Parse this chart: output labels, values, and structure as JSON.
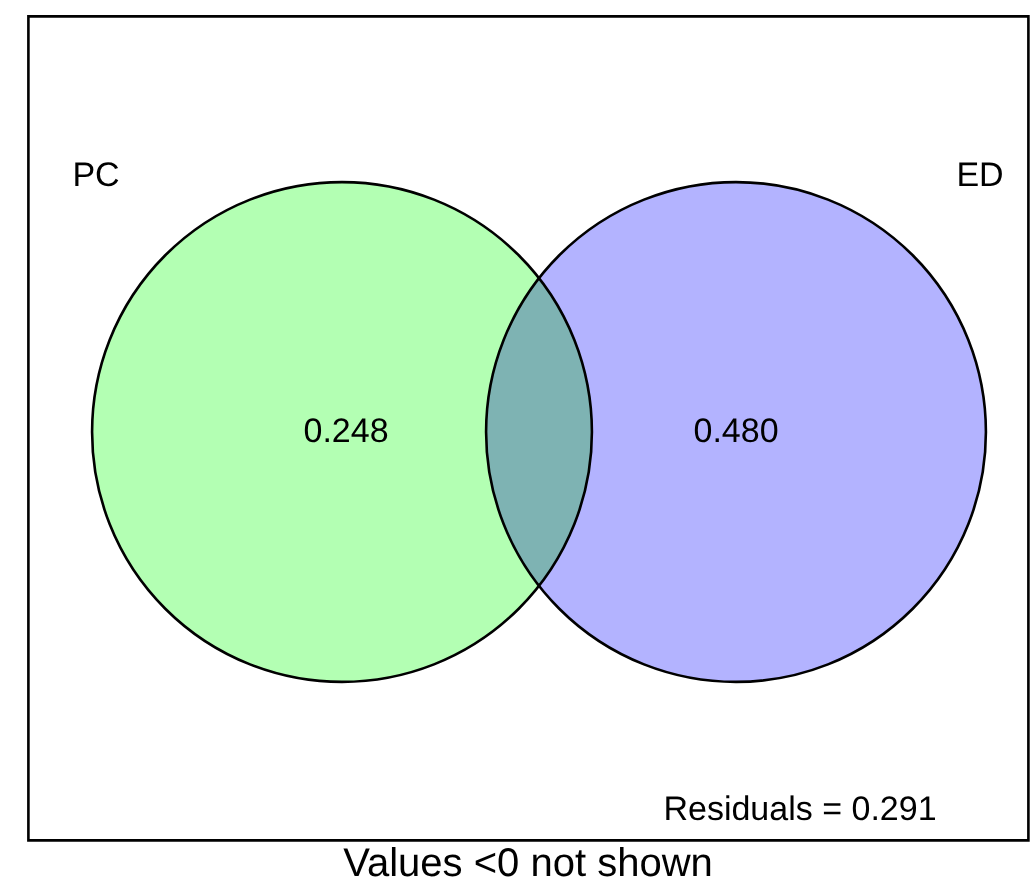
{
  "chart_data": {
    "type": "other",
    "categories": [
      "PC",
      "ED"
    ],
    "values": [
      0.248,
      0.48
    ],
    "value_labels": [
      "0.248",
      "0.480"
    ],
    "colors": [
      "#b3ffb3",
      "#b3b3ff"
    ],
    "annotations": [
      "Residuals = 0.291"
    ],
    "xlabel": "Values <0 not shown"
  }
}
